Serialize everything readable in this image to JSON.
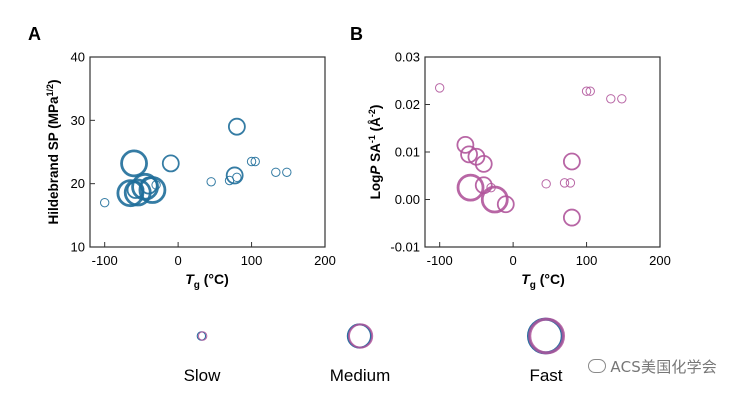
{
  "figure_panels": [
    "A",
    "B"
  ],
  "chart_data": [
    {
      "panel": "A",
      "type": "scatter",
      "xlabel": "T_g (°C)",
      "ylabel": "Hildebrand SP (MPa^1/2)",
      "xlim": [
        -120,
        200
      ],
      "ylim": [
        10,
        40
      ],
      "xticks": [
        -100,
        0,
        100,
        200
      ],
      "yticks": [
        10,
        20,
        30,
        40
      ],
      "marker_color": "#1f6e9a",
      "grid": false,
      "points": [
        {
          "x": -100,
          "y": 17.0,
          "speed": "slow"
        },
        {
          "x": -65,
          "y": 18.5,
          "speed": "fast"
        },
        {
          "x": -60,
          "y": 23.2,
          "speed": "fast"
        },
        {
          "x": -58,
          "y": 19.0,
          "speed": "medium"
        },
        {
          "x": -55,
          "y": 18.6,
          "speed": "fast"
        },
        {
          "x": -45,
          "y": 19.5,
          "speed": "fast"
        },
        {
          "x": -40,
          "y": 19.7,
          "speed": "medium"
        },
        {
          "x": -35,
          "y": 19.0,
          "speed": "fast"
        },
        {
          "x": -30,
          "y": 19.8,
          "speed": "slow"
        },
        {
          "x": -10,
          "y": 23.2,
          "speed": "medium"
        },
        {
          "x": 45,
          "y": 20.3,
          "speed": "slow"
        },
        {
          "x": 70,
          "y": 20.5,
          "speed": "slow"
        },
        {
          "x": 77,
          "y": 21.3,
          "speed": "medium"
        },
        {
          "x": 80,
          "y": 21.0,
          "speed": "slow"
        },
        {
          "x": 80,
          "y": 29.0,
          "speed": "medium"
        },
        {
          "x": 100,
          "y": 23.5,
          "speed": "slow"
        },
        {
          "x": 105,
          "y": 23.5,
          "speed": "slow"
        },
        {
          "x": 133,
          "y": 21.8,
          "speed": "slow"
        },
        {
          "x": 148,
          "y": 21.8,
          "speed": "slow"
        }
      ]
    },
    {
      "panel": "B",
      "type": "scatter",
      "xlabel": "T_g (°C)",
      "ylabel": "Log P SA^-1 (Å^-2)",
      "xlim": [
        -120,
        200
      ],
      "ylim": [
        -0.01,
        0.03
      ],
      "xticks": [
        -100,
        0,
        100,
        200
      ],
      "yticks": [
        -0.01,
        0.0,
        0.01,
        0.02,
        0.03
      ],
      "marker_color": "#b0559b",
      "grid": false,
      "points": [
        {
          "x": -100,
          "y": 0.0235,
          "speed": "slow"
        },
        {
          "x": -65,
          "y": 0.0115,
          "speed": "medium"
        },
        {
          "x": -60,
          "y": 0.0095,
          "speed": "medium"
        },
        {
          "x": -58,
          "y": 0.0025,
          "speed": "fast"
        },
        {
          "x": -50,
          "y": 0.009,
          "speed": "medium"
        },
        {
          "x": -40,
          "y": 0.0075,
          "speed": "medium"
        },
        {
          "x": -40,
          "y": 0.003,
          "speed": "medium"
        },
        {
          "x": -30,
          "y": 0.0025,
          "speed": "slow"
        },
        {
          "x": -25,
          "y": 0.0,
          "speed": "fast"
        },
        {
          "x": -10,
          "y": -0.001,
          "speed": "medium"
        },
        {
          "x": 45,
          "y": 0.0033,
          "speed": "slow"
        },
        {
          "x": 70,
          "y": 0.0035,
          "speed": "slow"
        },
        {
          "x": 78,
          "y": 0.0035,
          "speed": "slow"
        },
        {
          "x": 80,
          "y": 0.008,
          "speed": "medium"
        },
        {
          "x": 80,
          "y": -0.0038,
          "speed": "medium"
        },
        {
          "x": 100,
          "y": 0.0228,
          "speed": "slow"
        },
        {
          "x": 105,
          "y": 0.0228,
          "speed": "slow"
        },
        {
          "x": 133,
          "y": 0.0212,
          "speed": "slow"
        },
        {
          "x": 148,
          "y": 0.0212,
          "speed": "slow"
        }
      ]
    }
  ],
  "legend": {
    "items": [
      {
        "label": "Slow",
        "speed": "slow"
      },
      {
        "label": "Medium",
        "speed": "medium"
      },
      {
        "label": "Fast",
        "speed": "fast"
      }
    ],
    "colors": [
      "#2a6fa0",
      "#b0559b"
    ]
  },
  "watermark_text": "ACS美国化学会"
}
